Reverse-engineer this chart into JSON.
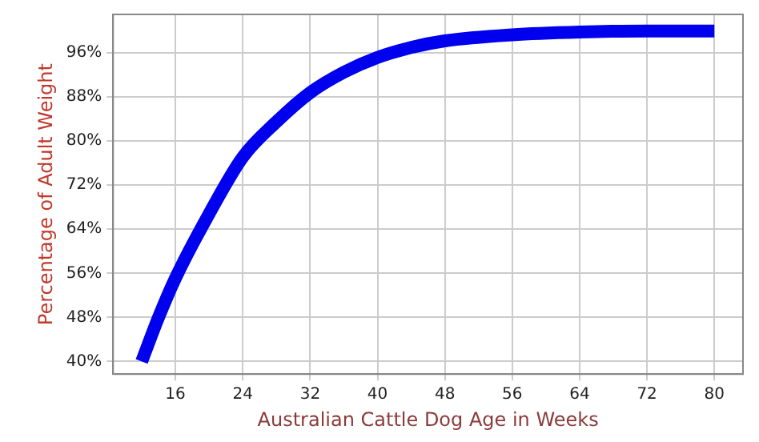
{
  "chart_data": {
    "type": "line",
    "xlabel": "Australian Cattle Dog Age in Weeks",
    "ylabel": "Percentage of Adult Weight",
    "x": [
      12,
      14,
      16,
      20,
      24,
      28,
      32,
      36,
      40,
      44,
      48,
      56,
      64,
      72,
      80
    ],
    "series": [
      {
        "color": "#0000ee",
        "values": [
          40,
          48,
          55.1,
          66.8,
          77.1,
          83.5,
          88.8,
          92.5,
          95.2,
          97,
          98.2,
          99.3,
          99.8,
          100,
          100
        ]
      }
    ],
    "xlim": [
      8.6,
      83.4
    ],
    "xticks": [
      16,
      24,
      32,
      40,
      48,
      56,
      64,
      72,
      80
    ],
    "ylim": [
      37.7,
      103
    ],
    "yticks": [
      {
        "value": 40,
        "label": "40%"
      },
      {
        "value": 48,
        "label": "48%"
      },
      {
        "value": 56,
        "label": "56%"
      },
      {
        "value": 64,
        "label": "64%"
      },
      {
        "value": 72,
        "label": "72%"
      },
      {
        "value": 80,
        "label": "80%"
      },
      {
        "value": 88,
        "label": "88%"
      },
      {
        "value": 96,
        "label": "96%"
      }
    ],
    "grid": true,
    "legend": false,
    "marker": "none",
    "line_style": "solid"
  }
}
